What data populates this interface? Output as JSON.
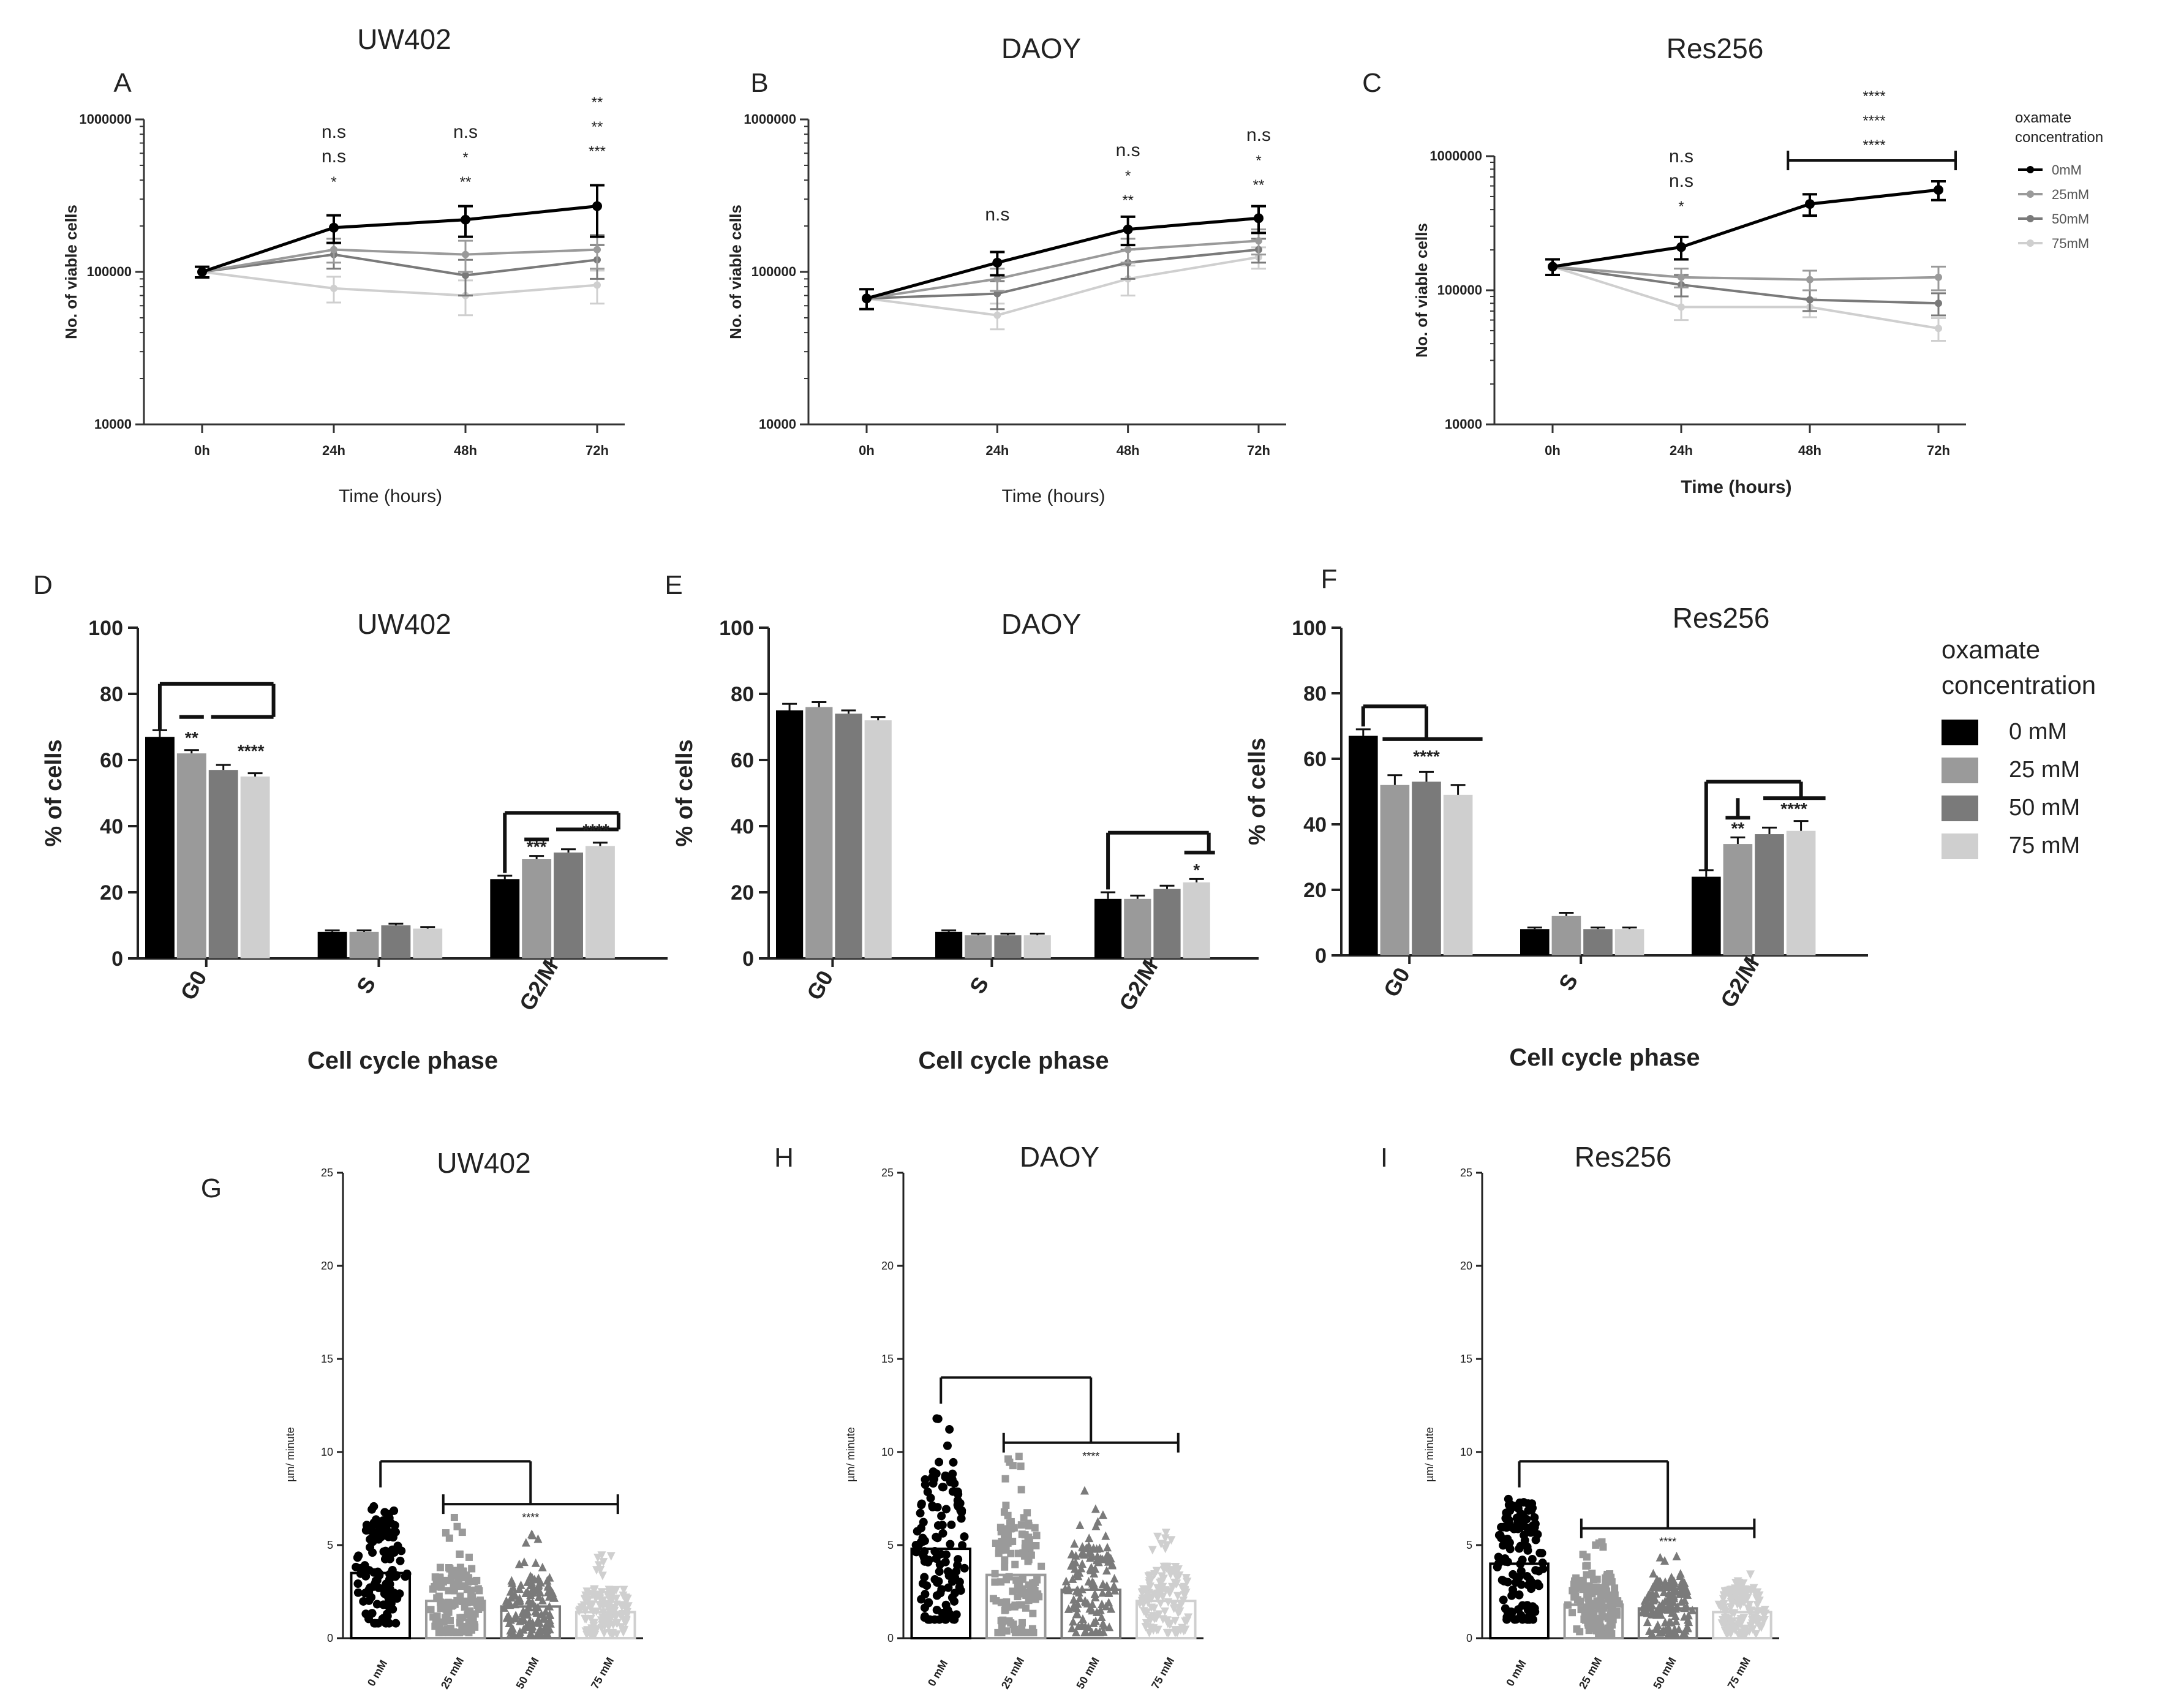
{
  "figure": {
    "description": "Effect of oxamate on medulloblastoma cell lines"
  },
  "colors": {
    "c0": "#000000",
    "c25": "#9a9a9a",
    "c50": "#7a7a7a",
    "c75": "#cfcfcf"
  },
  "legend_top": {
    "title": [
      "oxamate",
      "concentration"
    ],
    "items": [
      "0mM",
      "25mM",
      "50mM",
      "75mM"
    ]
  },
  "legend_mid": {
    "title": [
      "oxamate",
      "concentration"
    ],
    "items": [
      "0 mM",
      "25 mM",
      "50 mM",
      "75 mM"
    ]
  },
  "chart_data": [
    {
      "id": "A",
      "type": "line",
      "title": "UW402",
      "letter": "A",
      "xlabel": "Time (hours)",
      "ylabel": "No. of viable cells",
      "yscale": "log",
      "ylim": [
        10000,
        1000000
      ],
      "yticks": [
        "10000",
        "100000",
        "1000000"
      ],
      "categories": [
        "0h",
        "24h",
        "48h",
        "72h"
      ],
      "series": [
        {
          "name": "0mM",
          "values": [
            100000,
            195000,
            220000,
            270000
          ],
          "errors": [
            8000,
            40000,
            50000,
            100000
          ]
        },
        {
          "name": "25mM",
          "values": [
            100000,
            140000,
            130000,
            140000
          ],
          "errors": [
            8000,
            25000,
            30000,
            35000
          ]
        },
        {
          "name": "50mM",
          "values": [
            100000,
            130000,
            95000,
            120000
          ],
          "errors": [
            8000,
            25000,
            25000,
            30000
          ]
        },
        {
          "name": "75mM",
          "values": [
            100000,
            78000,
            70000,
            82000
          ],
          "errors": [
            8000,
            15000,
            18000,
            20000
          ]
        }
      ],
      "annotations": [
        {
          "x": "24h",
          "lines": [
            "n.s",
            "n.s",
            "*"
          ]
        },
        {
          "x": "48h",
          "lines": [
            "n.s",
            "*",
            "**"
          ]
        },
        {
          "x": "72h",
          "lines": [
            "**",
            "**",
            "***"
          ]
        }
      ]
    },
    {
      "id": "B",
      "type": "line",
      "title": "DAOY",
      "letter": "B",
      "xlabel": "Time (hours)",
      "ylabel": "No. of viable cells",
      "yscale": "log",
      "ylim": [
        10000,
        1000000
      ],
      "yticks": [
        "10000",
        "100000",
        "1000000"
      ],
      "categories": [
        "0h",
        "24h",
        "48h",
        "72h"
      ],
      "series": [
        {
          "name": "0mM",
          "values": [
            67000,
            115000,
            190000,
            225000
          ],
          "errors": [
            10000,
            20000,
            40000,
            45000
          ]
        },
        {
          "name": "25mM",
          "values": [
            67000,
            90000,
            140000,
            160000
          ],
          "errors": [
            10000,
            15000,
            25000,
            30000
          ]
        },
        {
          "name": "50mM",
          "values": [
            67000,
            72000,
            115000,
            140000
          ],
          "errors": [
            10000,
            15000,
            25000,
            25000
          ]
        },
        {
          "name": "75mM",
          "values": [
            67000,
            52000,
            90000,
            125000
          ],
          "errors": [
            10000,
            10000,
            20000,
            20000
          ]
        }
      ],
      "annotations": [
        {
          "x": "24h",
          "lines": [
            "n.s"
          ]
        },
        {
          "x": "48h",
          "lines": [
            "n.s",
            "*",
            "**"
          ]
        },
        {
          "x": "72h",
          "lines": [
            "n.s",
            "*",
            "**"
          ]
        }
      ]
    },
    {
      "id": "C",
      "type": "line",
      "title": "Res256",
      "letter": "C",
      "xlabel": "Time (hours)",
      "ylabel": "No. of viable cells",
      "yscale": "log",
      "ylim": [
        10000,
        1000000
      ],
      "yticks": [
        "10000",
        "100000",
        "1000000"
      ],
      "categories": [
        "0h",
        "24h",
        "48h",
        "72h"
      ],
      "series": [
        {
          "name": "0mM",
          "values": [
            150000,
            210000,
            440000,
            560000
          ],
          "errors": [
            20000,
            40000,
            80000,
            90000
          ]
        },
        {
          "name": "25mM",
          "values": [
            150000,
            125000,
            120000,
            125000
          ],
          "errors": [
            20000,
            20000,
            20000,
            25000
          ]
        },
        {
          "name": "50mM",
          "values": [
            150000,
            110000,
            85000,
            80000
          ],
          "errors": [
            20000,
            20000,
            15000,
            15000
          ]
        },
        {
          "name": "75mM",
          "values": [
            150000,
            75000,
            75000,
            52000
          ],
          "errors": [
            20000,
            15000,
            12000,
            10000
          ]
        }
      ],
      "annotations": [
        {
          "x": "24h",
          "lines": [
            "n.s",
            "n.s",
            "*"
          ]
        },
        {
          "x": "60h",
          "lines": [
            "****",
            "****",
            "****"
          ]
        }
      ]
    },
    {
      "id": "D",
      "type": "bar",
      "title": "UW402",
      "letter": "D",
      "xlabel": "Cell cycle phase",
      "ylabel": "% of cells",
      "ylim": [
        0,
        100
      ],
      "yticks": [
        "0",
        "20",
        "40",
        "60",
        "80",
        "100"
      ],
      "categories": [
        "G0",
        "S",
        "G2/M"
      ],
      "series": [
        {
          "name": "0 mM",
          "values": [
            67,
            8,
            24
          ],
          "errors": [
            2,
            0.5,
            1
          ]
        },
        {
          "name": "25 mM",
          "values": [
            62,
            8,
            30
          ],
          "errors": [
            1,
            0.5,
            1
          ]
        },
        {
          "name": "50 mM",
          "values": [
            57,
            10,
            32
          ],
          "errors": [
            1.5,
            0.5,
            1
          ]
        },
        {
          "name": "75 mM",
          "values": [
            55,
            9,
            34
          ],
          "errors": [
            1,
            0.5,
            1
          ]
        }
      ],
      "annotations": [
        "**",
        "****",
        "***",
        "****"
      ]
    },
    {
      "id": "E",
      "type": "bar",
      "title": "DAOY",
      "letter": "E",
      "xlabel": "Cell cycle phase",
      "ylabel": "% of cells",
      "ylim": [
        0,
        100
      ],
      "yticks": [
        "0",
        "20",
        "40",
        "60",
        "80",
        "100"
      ],
      "categories": [
        "G0",
        "S",
        "G2/M"
      ],
      "series": [
        {
          "name": "0 mM",
          "values": [
            75,
            8,
            18
          ],
          "errors": [
            2,
            0.5,
            2
          ]
        },
        {
          "name": "25 mM",
          "values": [
            76,
            7,
            18
          ],
          "errors": [
            1.5,
            0.5,
            1
          ]
        },
        {
          "name": "50 mM",
          "values": [
            74,
            7,
            21
          ],
          "errors": [
            1,
            0.5,
            1
          ]
        },
        {
          "name": "75 mM",
          "values": [
            72,
            7,
            23
          ],
          "errors": [
            1,
            0.5,
            1
          ]
        }
      ],
      "annotations": [
        "*"
      ]
    },
    {
      "id": "F",
      "type": "bar",
      "title": "Res256",
      "letter": "F",
      "xlabel": "Cell cycle phase",
      "ylabel": "% of cells",
      "ylim": [
        0,
        100
      ],
      "yticks": [
        "0",
        "20",
        "40",
        "60",
        "80",
        "100"
      ],
      "categories": [
        "G0",
        "S",
        "G2/M"
      ],
      "series": [
        {
          "name": "0 mM",
          "values": [
            67,
            8,
            24
          ],
          "errors": [
            2,
            0.5,
            2
          ]
        },
        {
          "name": "25 mM",
          "values": [
            52,
            12,
            34
          ],
          "errors": [
            3,
            1,
            2
          ]
        },
        {
          "name": "50 mM",
          "values": [
            53,
            8,
            37
          ],
          "errors": [
            3,
            0.5,
            2
          ]
        },
        {
          "name": "75 mM",
          "values": [
            49,
            8,
            38
          ],
          "errors": [
            3,
            0.5,
            3
          ]
        }
      ],
      "annotations": [
        "****",
        "**",
        "****"
      ]
    },
    {
      "id": "G",
      "type": "scatter",
      "title": "UW402",
      "letter": "G",
      "xlabel": "",
      "ylabel": "µm/ minute",
      "ylim": [
        0,
        25
      ],
      "yticks": [
        "0",
        "5",
        "10",
        "15",
        "20",
        "25"
      ],
      "categories": [
        "0 mM",
        "25 mM",
        "50 mM",
        "75 mM"
      ],
      "means": [
        3.5,
        2.0,
        1.7,
        1.4
      ],
      "ranges": [
        [
          0.8,
          7.5
        ],
        [
          0.3,
          6.5
        ],
        [
          0.2,
          5.8
        ],
        [
          0.2,
          4.5
        ]
      ],
      "annotations": [
        "****"
      ]
    },
    {
      "id": "H",
      "type": "scatter",
      "title": "DAOY",
      "letter": "H",
      "xlabel": "",
      "ylabel": "µm/ minute",
      "ylim": [
        0,
        25
      ],
      "yticks": [
        "0",
        "5",
        "10",
        "15",
        "20",
        "25"
      ],
      "categories": [
        "0 mM",
        "25 mM",
        "50 mM",
        "75 mM"
      ],
      "means": [
        4.8,
        3.4,
        2.6,
        2.0
      ],
      "ranges": [
        [
          1.0,
          12.0
        ],
        [
          0.3,
          9.8
        ],
        [
          0.3,
          8.0
        ],
        [
          0.3,
          6.0
        ]
      ],
      "annotations": [
        "****"
      ]
    },
    {
      "id": "I",
      "type": "scatter",
      "title": "Res256",
      "letter": "I",
      "xlabel": "",
      "ylabel": "µm/ minute",
      "ylim": [
        0,
        25
      ],
      "yticks": [
        "0",
        "5",
        "10",
        "15",
        "20",
        "25"
      ],
      "categories": [
        "0 mM",
        "25 mM",
        "50 mM",
        "75 mM"
      ],
      "means": [
        4.0,
        1.8,
        1.6,
        1.4
      ],
      "ranges": [
        [
          1.0,
          7.5
        ],
        [
          0.2,
          5.2
        ],
        [
          0.2,
          4.5
        ],
        [
          0.2,
          3.5
        ]
      ],
      "annotations": [
        "****"
      ]
    }
  ]
}
